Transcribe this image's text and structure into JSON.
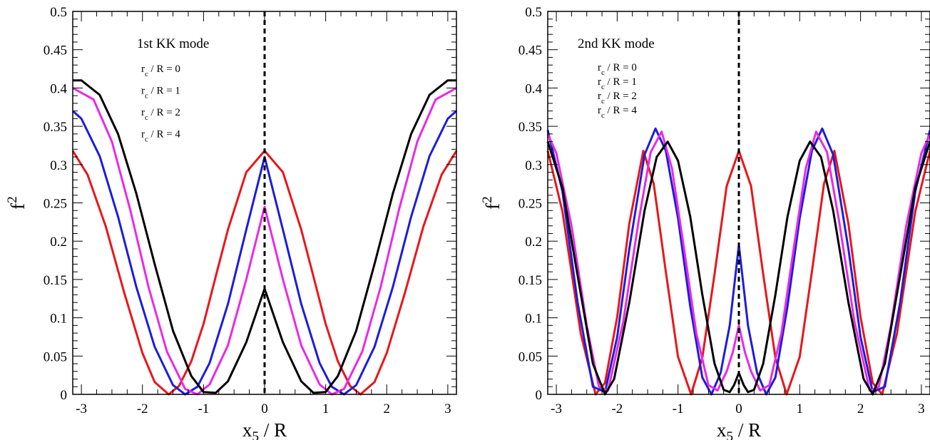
{
  "chart_data": [
    {
      "type": "line",
      "title": "1st KK mode",
      "xlabel": "x5 / R",
      "ylabel": "f2",
      "xlim": [
        -3.14159,
        3.14159
      ],
      "ylim": [
        0,
        0.5
      ],
      "xticks": [
        "-3",
        "-2",
        "-1",
        "0",
        "1",
        "2",
        "3"
      ],
      "yticks": [
        "0",
        "0.05",
        "0.1",
        "0.15",
        "0.2",
        "0.25",
        "0.3",
        "0.35",
        "0.4",
        "0.45",
        "0.5"
      ],
      "grid": false,
      "legend_position": "top-left",
      "reference_line": {
        "x": 0,
        "style": "dashed"
      },
      "series": [
        {
          "name": "rc / R = 0",
          "color": "#e8161b",
          "x": [
            0,
            0.3,
            0.6,
            0.8,
            1.0,
            1.2,
            1.4,
            1.571,
            1.8,
            2.0,
            2.3,
            2.6,
            2.9,
            3.1416
          ],
          "y": [
            0.318,
            0.29,
            0.215,
            0.154,
            0.092,
            0.043,
            0.011,
            0.0,
            0.016,
            0.054,
            0.133,
            0.219,
            0.287,
            0.318
          ]
        },
        {
          "name": "rc / R = 1",
          "color": "#1c1cdc",
          "x": [
            0,
            0.3,
            0.6,
            0.9,
            1.1,
            1.3,
            1.5,
            1.8,
            2.1,
            2.4,
            2.7,
            3.0,
            3.1416
          ],
          "y": [
            0.31,
            0.215,
            0.118,
            0.041,
            0.01,
            0.0,
            0.012,
            0.062,
            0.14,
            0.232,
            0.311,
            0.36,
            0.37
          ]
        },
        {
          "name": "rc / R = 2",
          "color": "#e82ae8",
          "x": [
            0,
            0.3,
            0.6,
            0.9,
            1.1,
            1.3,
            1.6,
            1.9,
            2.2,
            2.5,
            2.8,
            3.1416
          ],
          "y": [
            0.245,
            0.15,
            0.064,
            0.013,
            0.0,
            0.007,
            0.056,
            0.14,
            0.241,
            0.33,
            0.385,
            0.4
          ]
        },
        {
          "name": "rc / R = 4",
          "color": "#000000",
          "x": [
            0,
            0.3,
            0.6,
            0.8,
            1.0,
            1.2,
            1.5,
            1.8,
            2.1,
            2.4,
            2.7,
            3.0,
            3.1416
          ],
          "y": [
            0.138,
            0.068,
            0.017,
            0.002,
            0.003,
            0.024,
            0.083,
            0.17,
            0.262,
            0.34,
            0.391,
            0.41,
            0.41
          ]
        }
      ]
    },
    {
      "type": "line",
      "title": "2nd KK mode",
      "xlabel": "x5 / R",
      "ylabel": "f2",
      "xlim": [
        -3.14159,
        3.14159
      ],
      "ylim": [
        0,
        0.5
      ],
      "xticks": [
        "-3",
        "-2",
        "-1",
        "0",
        "1",
        "2",
        "3"
      ],
      "yticks": [
        "0",
        "0.05",
        "0.1",
        "0.15",
        "0.2",
        "0.25",
        "0.3",
        "0.35",
        "0.4",
        "0.45",
        "0.5"
      ],
      "grid": false,
      "legend_position": "top-left",
      "reference_line": {
        "x": 0,
        "style": "dashed"
      },
      "series": [
        {
          "name": "rc / R = 0",
          "color": "#e8161b",
          "x": [
            0,
            0.2,
            0.4,
            0.6,
            0.785,
            1.0,
            1.2,
            1.4,
            1.571,
            1.8,
            2.0,
            2.2,
            2.356,
            2.6,
            2.9,
            3.1416
          ],
          "y": [
            0.318,
            0.272,
            0.157,
            0.048,
            0.0,
            0.049,
            0.16,
            0.275,
            0.318,
            0.223,
            0.101,
            0.015,
            0.0,
            0.08,
            0.239,
            0.318
          ]
        },
        {
          "name": "rc / R = 1",
          "color": "#1c1cdc",
          "x": [
            0,
            0.15,
            0.3,
            0.45,
            0.6,
            0.8,
            1.0,
            1.2,
            1.37,
            1.55,
            1.8,
            2.0,
            2.2,
            2.4,
            2.65,
            2.9,
            3.1416
          ],
          "y": [
            0.195,
            0.09,
            0.028,
            0.0,
            0.022,
            0.115,
            0.23,
            0.318,
            0.347,
            0.313,
            0.19,
            0.075,
            0.003,
            0.01,
            0.12,
            0.265,
            0.345
          ]
        },
        {
          "name": "rc / R = 2",
          "color": "#e82ae8",
          "x": [
            0,
            0.1,
            0.2,
            0.35,
            0.5,
            0.7,
            0.9,
            1.1,
            1.27,
            1.45,
            1.65,
            1.9,
            2.15,
            2.3,
            2.5,
            2.75,
            3.0,
            3.1416
          ],
          "y": [
            0.09,
            0.055,
            0.03,
            0.005,
            0.012,
            0.08,
            0.19,
            0.295,
            0.343,
            0.316,
            0.225,
            0.095,
            0.005,
            0.01,
            0.09,
            0.22,
            0.315,
            0.34
          ]
        },
        {
          "name": "rc / R = 4",
          "color": "#000000",
          "x": [
            0,
            0.08,
            0.15,
            0.25,
            0.4,
            0.6,
            0.8,
            1.0,
            1.17,
            1.35,
            1.55,
            1.8,
            2.05,
            2.2,
            2.4,
            2.65,
            2.9,
            3.1416
          ],
          "y": [
            0.028,
            0.012,
            0.003,
            0.006,
            0.04,
            0.13,
            0.232,
            0.305,
            0.33,
            0.31,
            0.24,
            0.12,
            0.02,
            0.0,
            0.04,
            0.155,
            0.27,
            0.33
          ]
        }
      ]
    }
  ]
}
